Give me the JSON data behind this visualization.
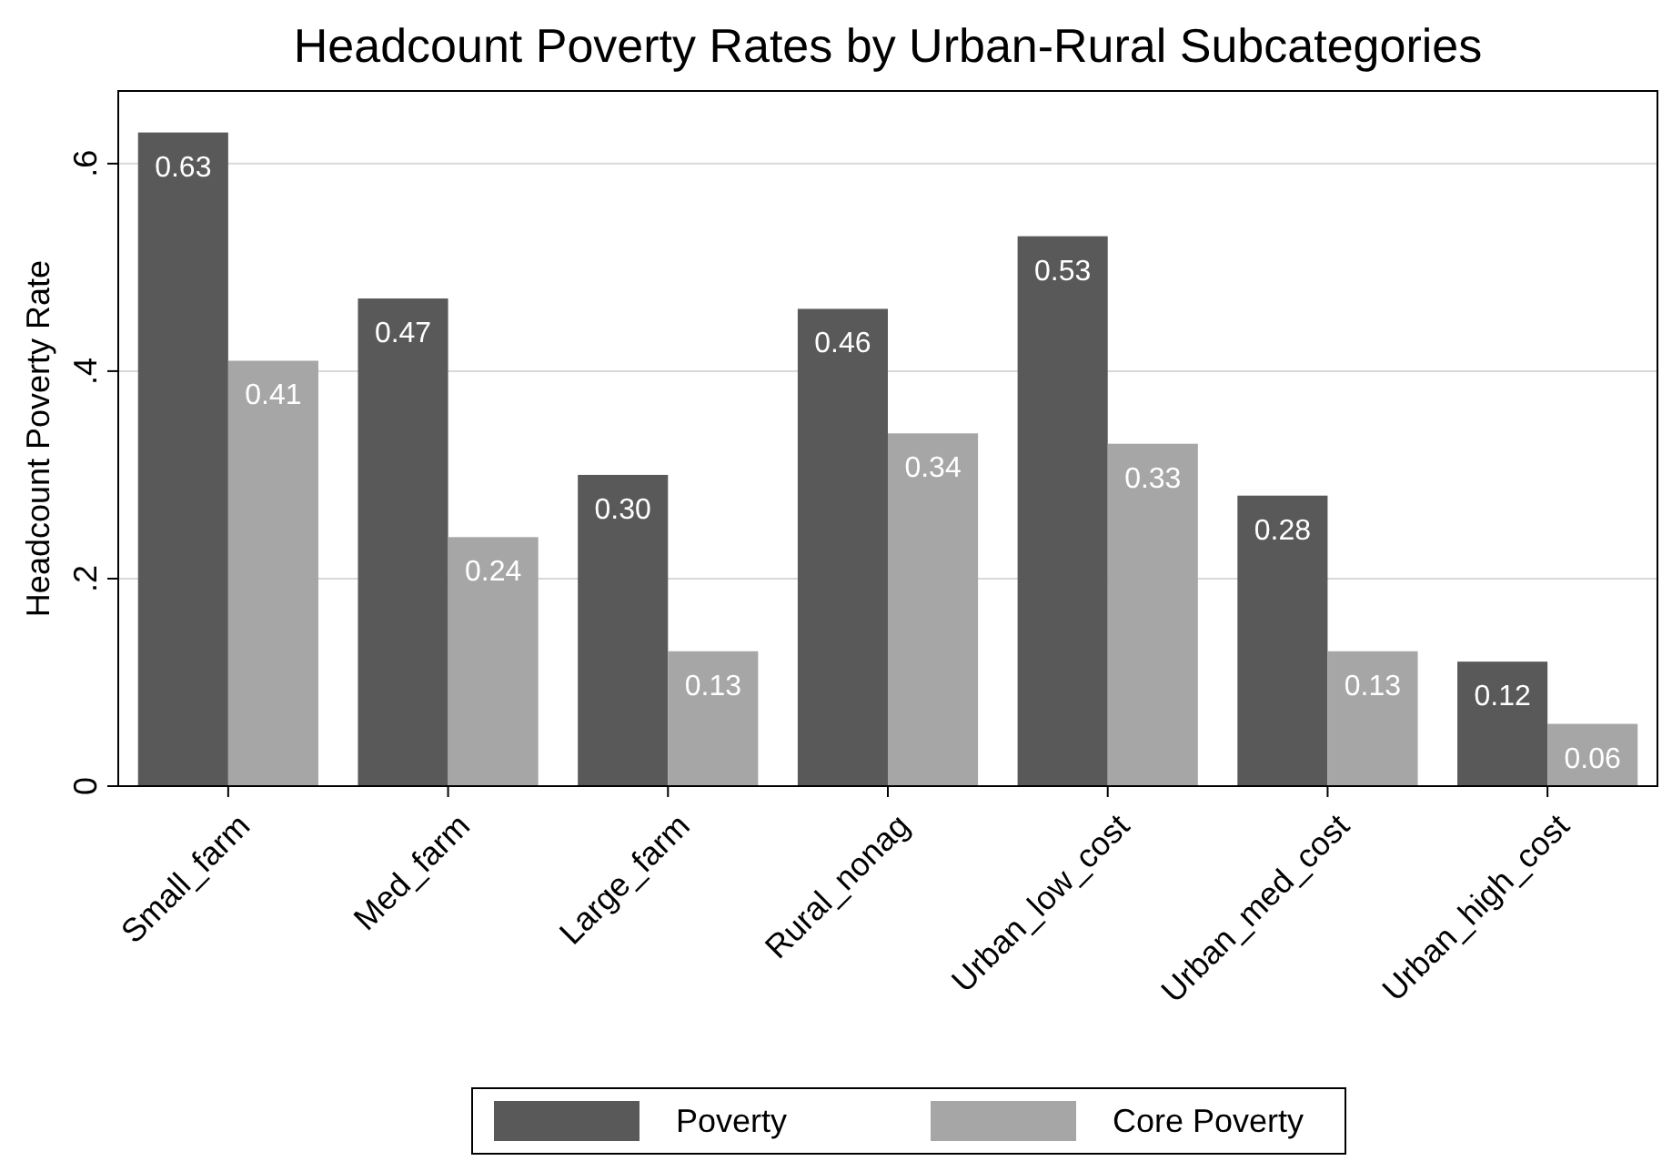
{
  "chart_data": {
    "type": "bar",
    "title": "Headcount Poverty Rates by Urban-Rural Subcategories",
    "ylabel": "Headcount Poverty Rate",
    "categories": [
      "Small_farm",
      "Med_farm",
      "Large_farm",
      "Rural_nonag",
      "Urban_low_cost",
      "Urban_med_cost",
      "Urban_high_cost"
    ],
    "series": [
      {
        "name": "Poverty",
        "color": "#595959",
        "values": [
          0.63,
          0.47,
          0.3,
          0.46,
          0.53,
          0.28,
          0.12
        ],
        "value_labels": [
          "0.63",
          "0.47",
          "0.30",
          "0.46",
          "0.53",
          "0.28",
          "0.12"
        ]
      },
      {
        "name": "Core Poverty",
        "color": "#a6a6a6",
        "values": [
          0.41,
          0.24,
          0.13,
          0.34,
          0.33,
          0.13,
          0.06
        ],
        "value_labels": [
          "0.41",
          "0.24",
          "0.13",
          "0.34",
          "0.33",
          "0.13",
          "0.06"
        ]
      }
    ],
    "ylim": [
      0,
      0.67
    ],
    "yticks": [
      0,
      {
        "value": 0.2,
        "label": ".2"
      },
      {
        "value": 0.4,
        "label": ".4"
      },
      {
        "value": 0.6,
        "label": ".6"
      }
    ],
    "grid": "y",
    "legend": "bottom"
  }
}
